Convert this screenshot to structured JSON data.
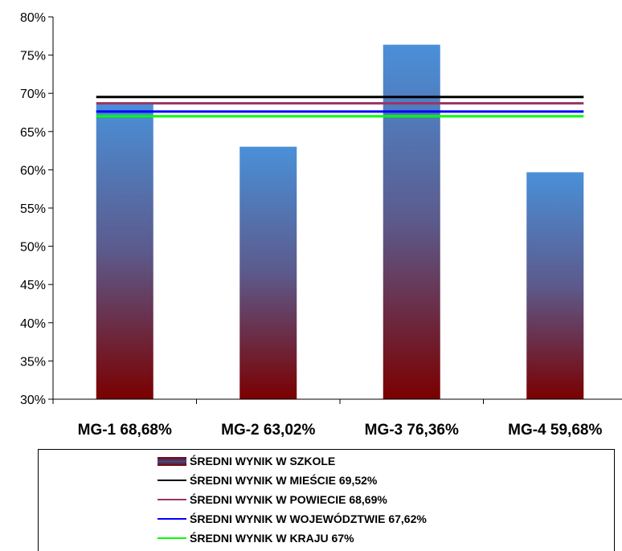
{
  "chart_data": {
    "type": "bar",
    "categories": [
      "MG-1 68,68%",
      "MG-2 63,02%",
      "MG-3 76,36%",
      "MG-4 59,68%"
    ],
    "series": [
      {
        "name": "ŚREDNI WYNIK W SZKOLE",
        "type": "bar",
        "values": [
          68.68,
          63.02,
          76.36,
          59.68
        ]
      }
    ],
    "reference_lines": [
      {
        "name": "ŚREDNI WYNIK W MIEŚCIE 69,52%",
        "value": 69.52,
        "color": "#000000"
      },
      {
        "name": "ŚREDNI WYNIK W POWIECIE 68,69%",
        "value": 68.69,
        "color": "#993366"
      },
      {
        "name": "ŚREDNI WYNIK W WOJEWÓDZTWIE 67,62%",
        "value": 67.62,
        "color": "#0000ff"
      },
      {
        "name": "ŚREDNI WYNIK W KRAJU 67%",
        "value": 67.0,
        "color": "#00ff00"
      }
    ],
    "yticks": [
      "30%",
      "35%",
      "40%",
      "45%",
      "50%",
      "55%",
      "60%",
      "65%",
      "70%",
      "75%",
      "80%"
    ],
    "ylim": [
      30,
      80
    ],
    "bar_gradient": [
      "#4a90d9",
      "#5c5a8c",
      "#7a0000"
    ],
    "title": "",
    "xlabel": "",
    "ylabel": "",
    "grid": false,
    "legend_position": "bottom"
  }
}
